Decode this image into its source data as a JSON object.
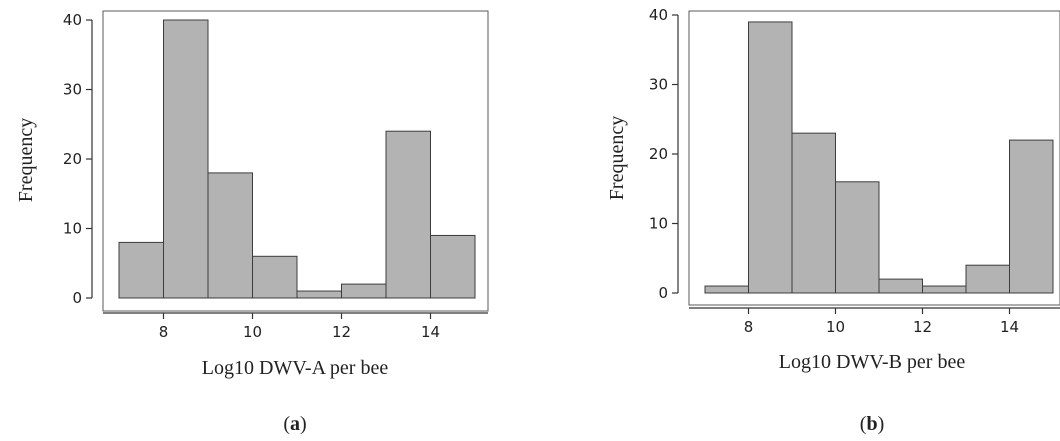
{
  "chart_data": [
    {
      "type": "bar",
      "panel_label": "a",
      "xlabel": "Log10 DWV-A per bee",
      "ylabel": "Frequency",
      "bins": [
        [
          7,
          8
        ],
        [
          8,
          9
        ],
        [
          9,
          10
        ],
        [
          10,
          11
        ],
        [
          11,
          12
        ],
        [
          12,
          13
        ],
        [
          13,
          14
        ],
        [
          14,
          15
        ]
      ],
      "values": [
        8,
        40,
        18,
        6,
        1,
        2,
        24,
        9
      ],
      "xticks": [
        8,
        10,
        12,
        14
      ],
      "yticks": [
        0,
        10,
        20,
        30,
        40
      ],
      "xlim": [
        6.6,
        15.3
      ],
      "ylim": [
        0,
        40
      ],
      "grid": false
    },
    {
      "type": "bar",
      "panel_label": "b",
      "xlabel": "Log10 DWV-B per bee",
      "ylabel": "Frequency",
      "bins": [
        [
          7,
          8
        ],
        [
          8,
          9
        ],
        [
          9,
          10
        ],
        [
          10,
          11
        ],
        [
          11,
          12
        ],
        [
          12,
          13
        ],
        [
          13,
          14
        ],
        [
          14,
          15
        ]
      ],
      "values": [
        1,
        39,
        23,
        16,
        2,
        1,
        4,
        22
      ],
      "xticks": [
        8,
        10,
        12,
        14
      ],
      "yticks": [
        0,
        10,
        20,
        30,
        40
      ],
      "xlim": [
        6.6,
        15.3
      ],
      "ylim": [
        0,
        40
      ],
      "grid": false
    }
  ]
}
